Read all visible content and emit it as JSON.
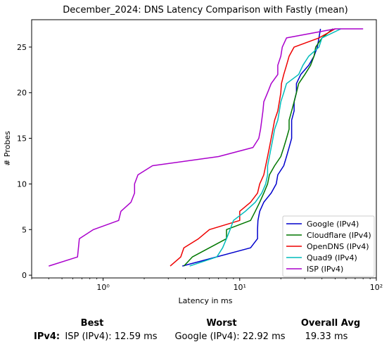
{
  "chart_data": {
    "type": "line",
    "title": "December_2024: DNS Latency Comparison with Fastly (mean)",
    "xlabel": "Latency in ms",
    "ylabel": "# Probes",
    "xscale": "log",
    "xlim": [
      0.3,
      100
    ],
    "ylim": [
      -0.3,
      28
    ],
    "xticks": [
      {
        "value": 1,
        "label": "10⁰"
      },
      {
        "value": 10,
        "label": "10¹"
      },
      {
        "value": 100,
        "label": "10²"
      }
    ],
    "yticks": [
      0,
      5,
      10,
      15,
      20,
      25
    ],
    "legend_position": "lower-right",
    "grid": false,
    "series": [
      {
        "name": "Google (IPv4)",
        "color": "#0000cc",
        "points": [
          [
            3.8,
            1
          ],
          [
            12,
            3
          ],
          [
            13.5,
            4
          ],
          [
            13.5,
            5
          ],
          [
            13.6,
            6
          ],
          [
            14,
            7
          ],
          [
            15,
            8
          ],
          [
            17,
            9
          ],
          [
            18.5,
            10
          ],
          [
            19,
            11
          ],
          [
            21,
            12
          ],
          [
            22,
            13
          ],
          [
            23,
            14
          ],
          [
            24,
            15
          ],
          [
            24,
            16
          ],
          [
            24,
            17
          ],
          [
            25,
            18
          ],
          [
            25,
            19
          ],
          [
            26,
            20
          ],
          [
            26,
            21
          ],
          [
            28,
            22
          ],
          [
            32,
            23
          ],
          [
            35,
            24
          ],
          [
            37,
            25
          ],
          [
            38,
            26
          ],
          [
            39,
            27
          ]
        ]
      },
      {
        "name": "Cloudflare (IPv4)",
        "color": "#007700",
        "points": [
          [
            3.9,
            1
          ],
          [
            4.5,
            2
          ],
          [
            8,
            4
          ],
          [
            8,
            5
          ],
          [
            12,
            6
          ],
          [
            13,
            7
          ],
          [
            14,
            8
          ],
          [
            15,
            9
          ],
          [
            16,
            10
          ],
          [
            16.5,
            11
          ],
          [
            18,
            12
          ],
          [
            20,
            13
          ],
          [
            21,
            14
          ],
          [
            22,
            15
          ],
          [
            23,
            16
          ],
          [
            23,
            17
          ],
          [
            24,
            18
          ],
          [
            25,
            19
          ],
          [
            26,
            20
          ],
          [
            27,
            21
          ],
          [
            30,
            22
          ],
          [
            33,
            23
          ],
          [
            35,
            24
          ],
          [
            36,
            25
          ],
          [
            40,
            26
          ],
          [
            48,
            27
          ]
        ]
      },
      {
        "name": "OpenDNS (IPv4)",
        "color": "#ee0000",
        "points": [
          [
            3.1,
            1
          ],
          [
            3.7,
            2
          ],
          [
            3.9,
            3
          ],
          [
            5,
            4
          ],
          [
            6,
            5
          ],
          [
            10,
            6
          ],
          [
            10,
            7
          ],
          [
            12,
            8
          ],
          [
            13.5,
            9
          ],
          [
            14,
            10
          ],
          [
            15,
            11
          ],
          [
            15.5,
            12
          ],
          [
            16,
            13
          ],
          [
            16.5,
            14
          ],
          [
            17,
            15
          ],
          [
            17.5,
            16
          ],
          [
            18,
            17
          ],
          [
            19,
            18
          ],
          [
            19.5,
            19
          ],
          [
            20,
            20
          ],
          [
            20.2,
            21
          ],
          [
            21,
            22
          ],
          [
            22,
            23
          ],
          [
            23,
            24
          ],
          [
            25,
            25
          ],
          [
            38,
            26
          ],
          [
            50,
            27
          ]
        ]
      },
      {
        "name": "Quad9 (IPv4)",
        "color": "#00bbbb",
        "points": [
          [
            4.3,
            1
          ],
          [
            6.8,
            2
          ],
          [
            7.5,
            3
          ],
          [
            8,
            4
          ],
          [
            8.5,
            5
          ],
          [
            9,
            6
          ],
          [
            11,
            7
          ],
          [
            13,
            8
          ],
          [
            14.5,
            9
          ],
          [
            15.5,
            10
          ],
          [
            16,
            11
          ],
          [
            16,
            12
          ],
          [
            16.5,
            13
          ],
          [
            17,
            14
          ],
          [
            17.5,
            15
          ],
          [
            18,
            16
          ],
          [
            19,
            17
          ],
          [
            19.5,
            18
          ],
          [
            20,
            19
          ],
          [
            21,
            20
          ],
          [
            22,
            21
          ],
          [
            27,
            22
          ],
          [
            29,
            23
          ],
          [
            32,
            24
          ],
          [
            38,
            25
          ],
          [
            40,
            26
          ],
          [
            55,
            27
          ]
        ]
      },
      {
        "name": "ISP (IPv4)",
        "color": "#aa00cc",
        "points": [
          [
            0.4,
            1
          ],
          [
            0.65,
            2
          ],
          [
            0.67,
            4
          ],
          [
            0.85,
            5
          ],
          [
            1.3,
            6
          ],
          [
            1.35,
            7
          ],
          [
            1.6,
            8
          ],
          [
            1.7,
            9
          ],
          [
            1.7,
            10
          ],
          [
            1.8,
            11
          ],
          [
            2.3,
            12
          ],
          [
            7,
            13
          ],
          [
            12.5,
            14
          ],
          [
            13.8,
            15
          ],
          [
            14.2,
            16
          ],
          [
            14.5,
            17
          ],
          [
            14.8,
            18
          ],
          [
            15,
            19
          ],
          [
            16,
            20
          ],
          [
            17,
            21
          ],
          [
            19,
            22
          ],
          [
            19,
            23
          ],
          [
            20,
            24
          ],
          [
            20.5,
            25
          ],
          [
            22,
            26
          ],
          [
            50,
            27
          ],
          [
            80,
            27
          ]
        ]
      }
    ]
  },
  "summary": {
    "headers": {
      "best": "Best",
      "worst": "Worst",
      "overall": "Overall Avg"
    },
    "row_label": "IPv4",
    "best": "ISP (IPv4): 12.59 ms",
    "worst": "Google (IPv4): 22.92 ms",
    "overall": "19.33 ms"
  }
}
